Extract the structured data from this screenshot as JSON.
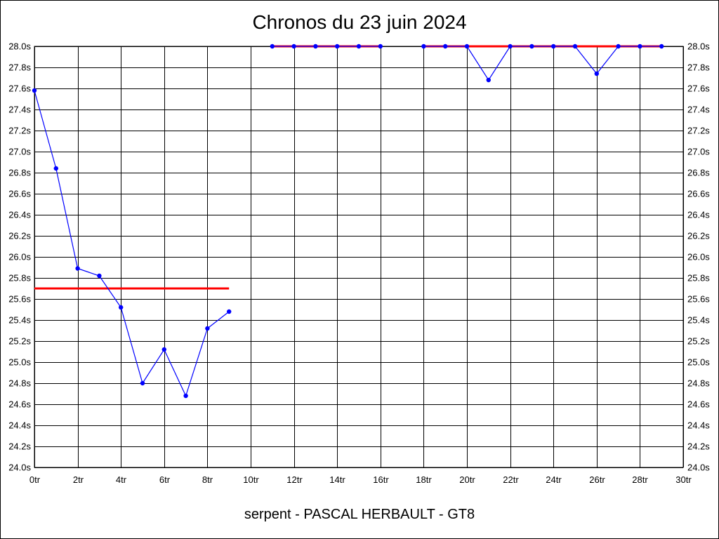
{
  "chart_data": {
    "type": "line",
    "title": "Chronos du 23 juin 2024",
    "subtitle": "serpent - PASCAL HERBAULT - GT8",
    "xlabel": "",
    "ylabel": "",
    "xlim": [
      0,
      30
    ],
    "ylim": [
      24.0,
      28.0
    ],
    "x_ticks": [
      "0tr",
      "2tr",
      "4tr",
      "6tr",
      "8tr",
      "10tr",
      "12tr",
      "14tr",
      "16tr",
      "18tr",
      "20tr",
      "22tr",
      "24tr",
      "26tr",
      "28tr",
      "30tr"
    ],
    "y_ticks": [
      "24.0s",
      "24.2s",
      "24.4s",
      "24.6s",
      "24.8s",
      "25.0s",
      "25.2s",
      "25.4s",
      "25.6s",
      "25.8s",
      "26.0s",
      "26.2s",
      "26.4s",
      "26.6s",
      "26.8s",
      "27.0s",
      "27.2s",
      "27.4s",
      "27.6s",
      "27.8s",
      "28.0s"
    ],
    "grid": true,
    "series": [
      {
        "color": "#0000ff",
        "points": [
          {
            "x": 0,
            "y": 27.58
          },
          {
            "x": 1,
            "y": 26.84
          },
          {
            "x": 2,
            "y": 25.89
          },
          {
            "x": 3,
            "y": 25.82
          },
          {
            "x": 4,
            "y": 25.52
          },
          {
            "x": 5,
            "y": 24.8
          },
          {
            "x": 6,
            "y": 25.12
          },
          {
            "x": 7,
            "y": 24.68
          },
          {
            "x": 8,
            "y": 25.32
          },
          {
            "x": 9,
            "y": 25.48
          }
        ]
      },
      {
        "color": "#0000ff",
        "points": [
          {
            "x": 11,
            "y": 28.0
          },
          {
            "x": 12,
            "y": 28.0
          },
          {
            "x": 13,
            "y": 28.0
          },
          {
            "x": 14,
            "y": 28.0
          },
          {
            "x": 15,
            "y": 28.0
          },
          {
            "x": 16,
            "y": 28.0
          }
        ]
      },
      {
        "color": "#0000ff",
        "points": [
          {
            "x": 18,
            "y": 28.0
          },
          {
            "x": 19,
            "y": 28.0
          },
          {
            "x": 20,
            "y": 28.0
          },
          {
            "x": 21,
            "y": 27.68
          },
          {
            "x": 22,
            "y": 28.0
          },
          {
            "x": 23,
            "y": 28.0
          },
          {
            "x": 24,
            "y": 28.0
          },
          {
            "x": 25,
            "y": 28.0
          },
          {
            "x": 26,
            "y": 27.74
          },
          {
            "x": 27,
            "y": 28.0
          },
          {
            "x": 28,
            "y": 28.0
          },
          {
            "x": 29,
            "y": 28.0
          }
        ]
      }
    ],
    "reference_lines": [
      {
        "color": "#ff0000",
        "x_start": 0,
        "x_end": 9,
        "y": 25.7
      },
      {
        "color": "#ff0000",
        "x_start": 11,
        "x_end": 16,
        "y": 28.0
      },
      {
        "color": "#ff0000",
        "x_start": 18,
        "x_end": 29,
        "y": 28.0
      }
    ]
  }
}
